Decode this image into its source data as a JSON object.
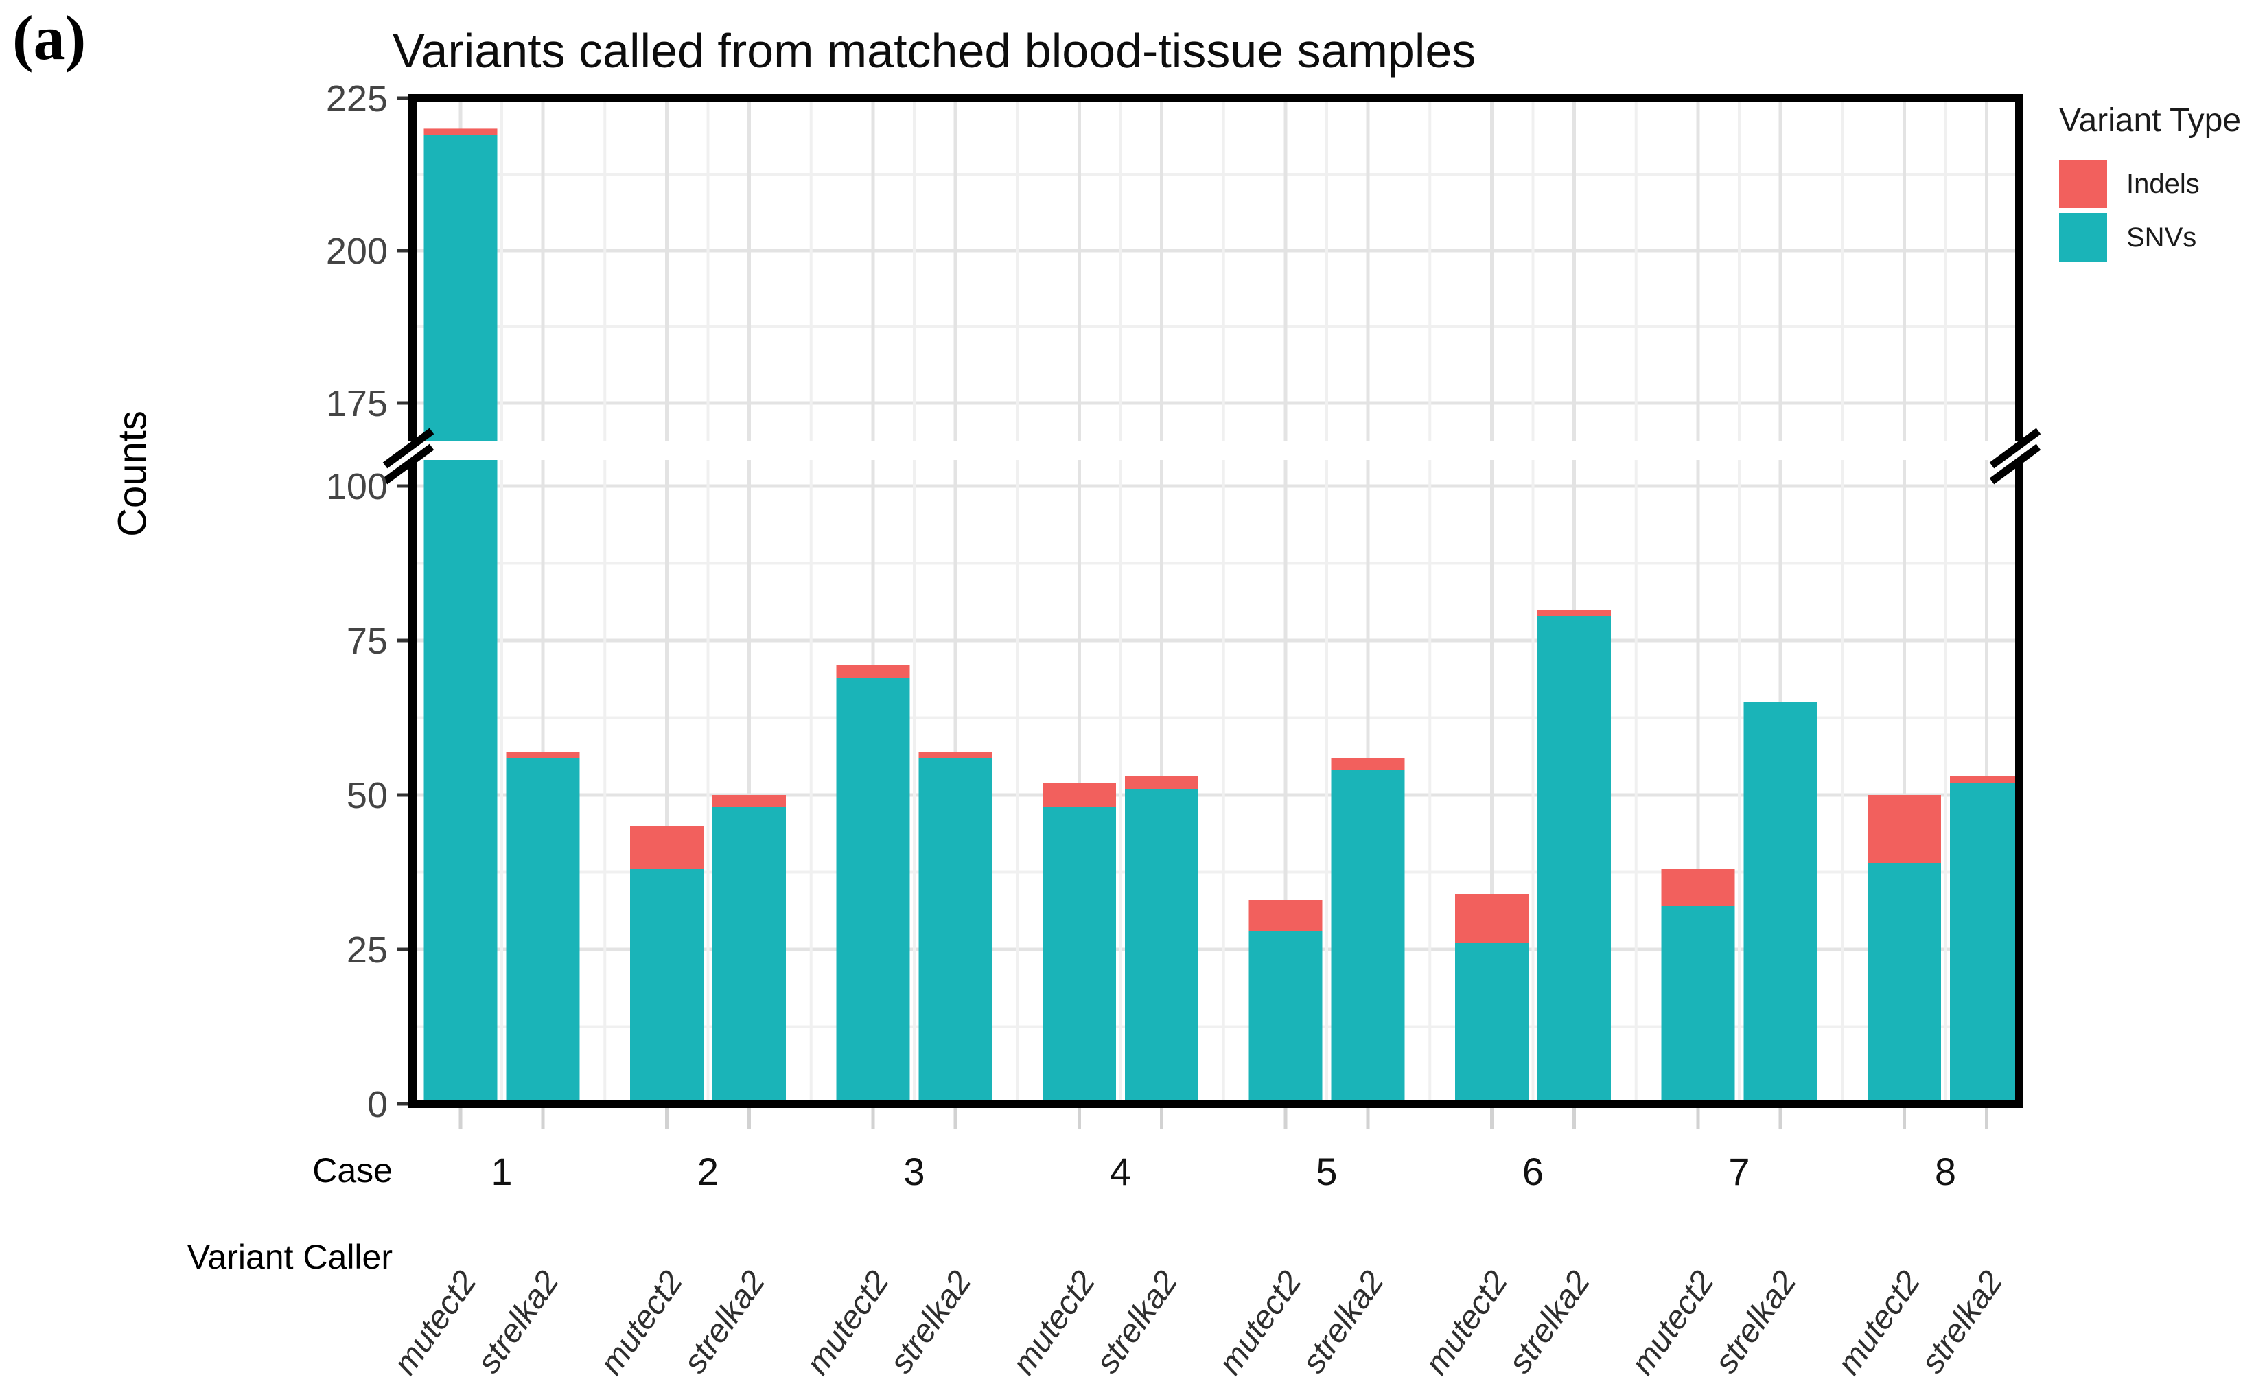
{
  "panel_label": "(a)",
  "chart_data": {
    "type": "bar",
    "stacked": true,
    "title": "Variants called from matched blood-tissue samples",
    "ylabel": "Counts",
    "x_axis": {
      "case_label": "Case",
      "caller_label": "Variant Caller",
      "cases": [
        "1",
        "2",
        "3",
        "4",
        "5",
        "6",
        "7",
        "8"
      ],
      "callers": [
        "mutect2",
        "strelka2"
      ]
    },
    "y_axis": {
      "ticks_lower": [
        0,
        25,
        50,
        75,
        100
      ],
      "ticks_upper": [
        175,
        200,
        225
      ],
      "break_between": [
        105,
        170
      ],
      "grid": true
    },
    "legend": {
      "title": "Variant Type",
      "position": "right",
      "entries": [
        {
          "label": "Indels",
          "color": "#F2605D"
        },
        {
          "label": "SNVs",
          "color": "#1AB4B8"
        }
      ]
    },
    "colors": {
      "snvs": "#1AB4B8",
      "indels": "#F2605D"
    },
    "bars": [
      {
        "case": "1",
        "caller": "mutect2",
        "snvs": 219,
        "indels": 1
      },
      {
        "case": "1",
        "caller": "strelka2",
        "snvs": 56,
        "indels": 1
      },
      {
        "case": "2",
        "caller": "mutect2",
        "snvs": 38,
        "indels": 7
      },
      {
        "case": "2",
        "caller": "strelka2",
        "snvs": 48,
        "indels": 2
      },
      {
        "case": "3",
        "caller": "mutect2",
        "snvs": 69,
        "indels": 2
      },
      {
        "case": "3",
        "caller": "strelka2",
        "snvs": 56,
        "indels": 1
      },
      {
        "case": "4",
        "caller": "mutect2",
        "snvs": 48,
        "indels": 4
      },
      {
        "case": "4",
        "caller": "strelka2",
        "snvs": 51,
        "indels": 2
      },
      {
        "case": "5",
        "caller": "mutect2",
        "snvs": 28,
        "indels": 5
      },
      {
        "case": "5",
        "caller": "strelka2",
        "snvs": 54,
        "indels": 2
      },
      {
        "case": "6",
        "caller": "mutect2",
        "snvs": 26,
        "indels": 8
      },
      {
        "case": "6",
        "caller": "strelka2",
        "snvs": 79,
        "indels": 1
      },
      {
        "case": "7",
        "caller": "mutect2",
        "snvs": 32,
        "indels": 6
      },
      {
        "case": "7",
        "caller": "strelka2",
        "snvs": 65,
        "indels": 0
      },
      {
        "case": "8",
        "caller": "mutect2",
        "snvs": 39,
        "indels": 11
      },
      {
        "case": "8",
        "caller": "strelka2",
        "snvs": 52,
        "indels": 1
      }
    ]
  }
}
